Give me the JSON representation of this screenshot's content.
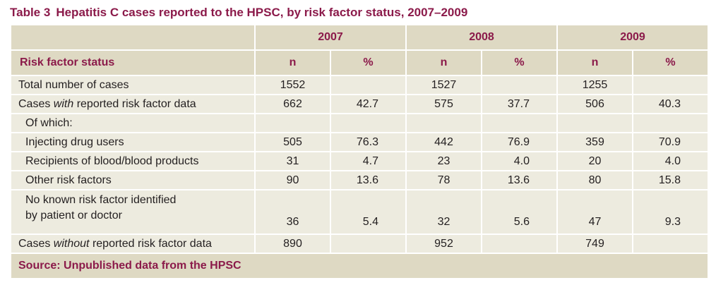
{
  "title": {
    "number": "Table 3",
    "text": "Hepatitis C cases reported to the HPSC, by risk factor status, 2007–2009"
  },
  "table": {
    "years": [
      "2007",
      "2008",
      "2009"
    ],
    "row_header": "Risk factor status",
    "col_n": "n",
    "col_pct": "%",
    "rows": [
      {
        "label": "Total number of cases",
        "values": [
          "1552",
          "",
          "1527",
          "",
          "1255",
          ""
        ]
      },
      {
        "label_pre": "Cases ",
        "label_em": "with",
        "label_post": " reported risk factor data",
        "values": [
          "662",
          "42.7",
          "575",
          "37.7",
          "506",
          "40.3"
        ]
      },
      {
        "label": "Of which:",
        "values": [
          "",
          "",
          "",
          "",
          "",
          ""
        ]
      },
      {
        "label": "Injecting drug users",
        "values": [
          "505",
          "76.3",
          "442",
          "76.9",
          "359",
          "70.9"
        ]
      },
      {
        "label": "Recipients of blood/blood products",
        "values": [
          "31",
          "4.7",
          "23",
          "4.0",
          "20",
          "4.0"
        ]
      },
      {
        "label": "Other risk factors",
        "values": [
          "90",
          "13.6",
          "78",
          "13.6",
          "80",
          "15.8"
        ]
      },
      {
        "label_line1": "No known risk factor identified",
        "label_line2": "by patient or doctor",
        "values": [
          "36",
          "5.4",
          "32",
          "5.6",
          "47",
          "9.3"
        ]
      },
      {
        "label_pre": "Cases ",
        "label_em": "without",
        "label_post": " reported risk factor data",
        "values": [
          "890",
          "",
          "952",
          "",
          "749",
          ""
        ]
      }
    ],
    "source": "Source: Unpublished data from the HPSC"
  }
}
